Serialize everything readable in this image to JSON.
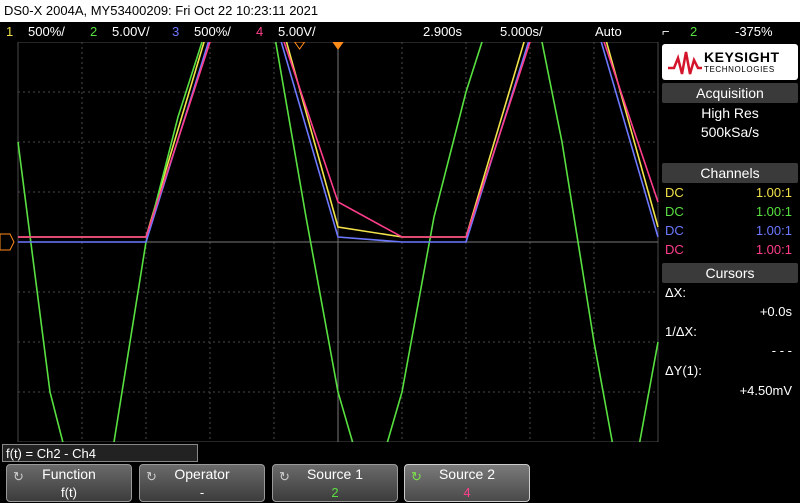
{
  "title": "DS0-X 2004A, MY53400209: Fri Oct 22 10:23:11 2021",
  "topbar": {
    "ch1_num": "1",
    "ch1_scale": "500%/",
    "ch2_num": "2",
    "ch2_scale": "5.00V/",
    "ch3_num": "3",
    "ch3_scale": "500%/",
    "ch4_num": "4",
    "ch4_scale": "5.00V/",
    "delay": "2.900s",
    "timebase": "5.000s/",
    "trigger_mode": "Auto",
    "trig_source": "2",
    "trig_level": "-375%"
  },
  "brand": {
    "name": "KEYSIGHT",
    "sub": "TECHNOLOGIES"
  },
  "acquisition": {
    "header": "Acquisition",
    "mode": "High Res",
    "rate": "500kSa/s"
  },
  "channels": {
    "header": "Channels",
    "rows": [
      {
        "coupling": "DC",
        "probe": "1.00:1",
        "color": "#f2e24a"
      },
      {
        "coupling": "DC",
        "probe": "1.00:1",
        "color": "#58e040"
      },
      {
        "coupling": "DC",
        "probe": "1.00:1",
        "color": "#6c78ff"
      },
      {
        "coupling": "DC",
        "probe": "1.00:1",
        "color": "#ff3d8b"
      }
    ]
  },
  "cursors": {
    "header": "Cursors",
    "dx_label": "ΔX:",
    "dx_value": "+0.0s",
    "inv_label": "1/ΔX:",
    "inv_value": "- - -",
    "dy_label": "ΔY(1):",
    "dy_value": "+4.50mV"
  },
  "function_label": "f(t) = Ch2 - Ch4",
  "softkeys": [
    {
      "label": "Function",
      "value": "f(t)",
      "value_color": "#ffffff"
    },
    {
      "label": "Operator",
      "value": "-",
      "value_color": "#ffffff"
    },
    {
      "label": "Source 1",
      "value": "2",
      "value_color": "#58e040"
    },
    {
      "label": "Source 2",
      "value": "4",
      "value_color": "#ff3d8b"
    }
  ],
  "colors": {
    "ch1": "#f2e24a",
    "ch2": "#58e040",
    "ch3": "#6c78ff",
    "ch4": "#ff3d8b",
    "grid": "#4a4a4a",
    "trigger_marker": "#ff8c1a"
  },
  "chart_data": {
    "type": "line",
    "title": "",
    "xlabel": "",
    "ylabel": "",
    "grid": true,
    "x_divisions": 10,
    "y_divisions": 8,
    "series": [
      {
        "color": "#f2e24a",
        "x": [
          0,
          1,
          2,
          3,
          4,
          5,
          6,
          7,
          8,
          9,
          10
        ],
        "y": [
          0.1,
          0.1,
          0.1,
          4.4,
          4.9,
          0.3,
          0.1,
          0.1,
          4.4,
          4.9,
          0.3
        ]
      },
      {
        "color": "#58e040",
        "x": [
          0,
          0.5,
          1,
          1.5,
          2,
          2.5,
          3,
          3.5,
          4,
          4.5,
          5,
          5.5,
          6,
          6.5,
          7,
          7.5,
          8,
          8.5,
          9,
          9.5,
          10
        ],
        "y": [
          2,
          -3,
          -5.5,
          -4,
          0,
          2.5,
          4.5,
          5.2,
          4.2,
          0.5,
          -3,
          -5.2,
          -3,
          0.5,
          3,
          5,
          5.2,
          2,
          -2,
          -5.5,
          -2
        ]
      },
      {
        "color": "#6c78ff",
        "x": [
          0,
          1,
          2,
          3,
          4,
          5,
          6,
          7,
          8,
          9,
          10
        ],
        "y": [
          0,
          0,
          0,
          4.1,
          4.5,
          0.1,
          0,
          0,
          4.1,
          4.5,
          0.1
        ]
      },
      {
        "color": "#ff3d8b",
        "x": [
          0,
          1,
          2,
          3,
          4,
          5,
          6,
          7,
          8,
          9,
          10
        ],
        "y": [
          0.1,
          0.1,
          0.1,
          4.0,
          4.6,
          0.8,
          0.1,
          0.1,
          4.0,
          4.6,
          0.8
        ]
      }
    ]
  }
}
